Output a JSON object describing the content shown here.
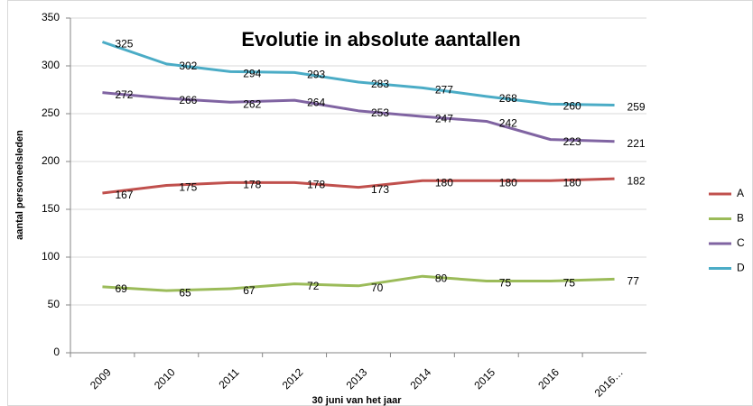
{
  "chart_data": {
    "type": "line",
    "title": "Evolutie in absolute aantallen",
    "x_label": "30 juni van het jaar",
    "y_label": "aantal personeelsleden",
    "categories": [
      "2009",
      "2010",
      "2011",
      "2012",
      "2013",
      "2014",
      "2015",
      "2016",
      "2016…"
    ],
    "series": [
      {
        "name": "A",
        "color": "#c0504d",
        "values": [
          167,
          175,
          178,
          178,
          173,
          180,
          180,
          180,
          182
        ]
      },
      {
        "name": "B",
        "color": "#9bbb59",
        "values": [
          69,
          65,
          67,
          72,
          70,
          80,
          75,
          75,
          77
        ]
      },
      {
        "name": "C",
        "color": "#8064a2",
        "values": [
          272,
          266,
          262,
          264,
          253,
          247,
          242,
          223,
          221
        ]
      },
      {
        "name": "D",
        "color": "#4bacc6",
        "values": [
          325,
          302,
          294,
          293,
          283,
          277,
          268,
          260,
          259
        ]
      }
    ],
    "ylim": [
      0,
      350
    ],
    "yticks": [
      0,
      50,
      100,
      150,
      200,
      250,
      300,
      350
    ],
    "grid": true,
    "legend": "right"
  }
}
